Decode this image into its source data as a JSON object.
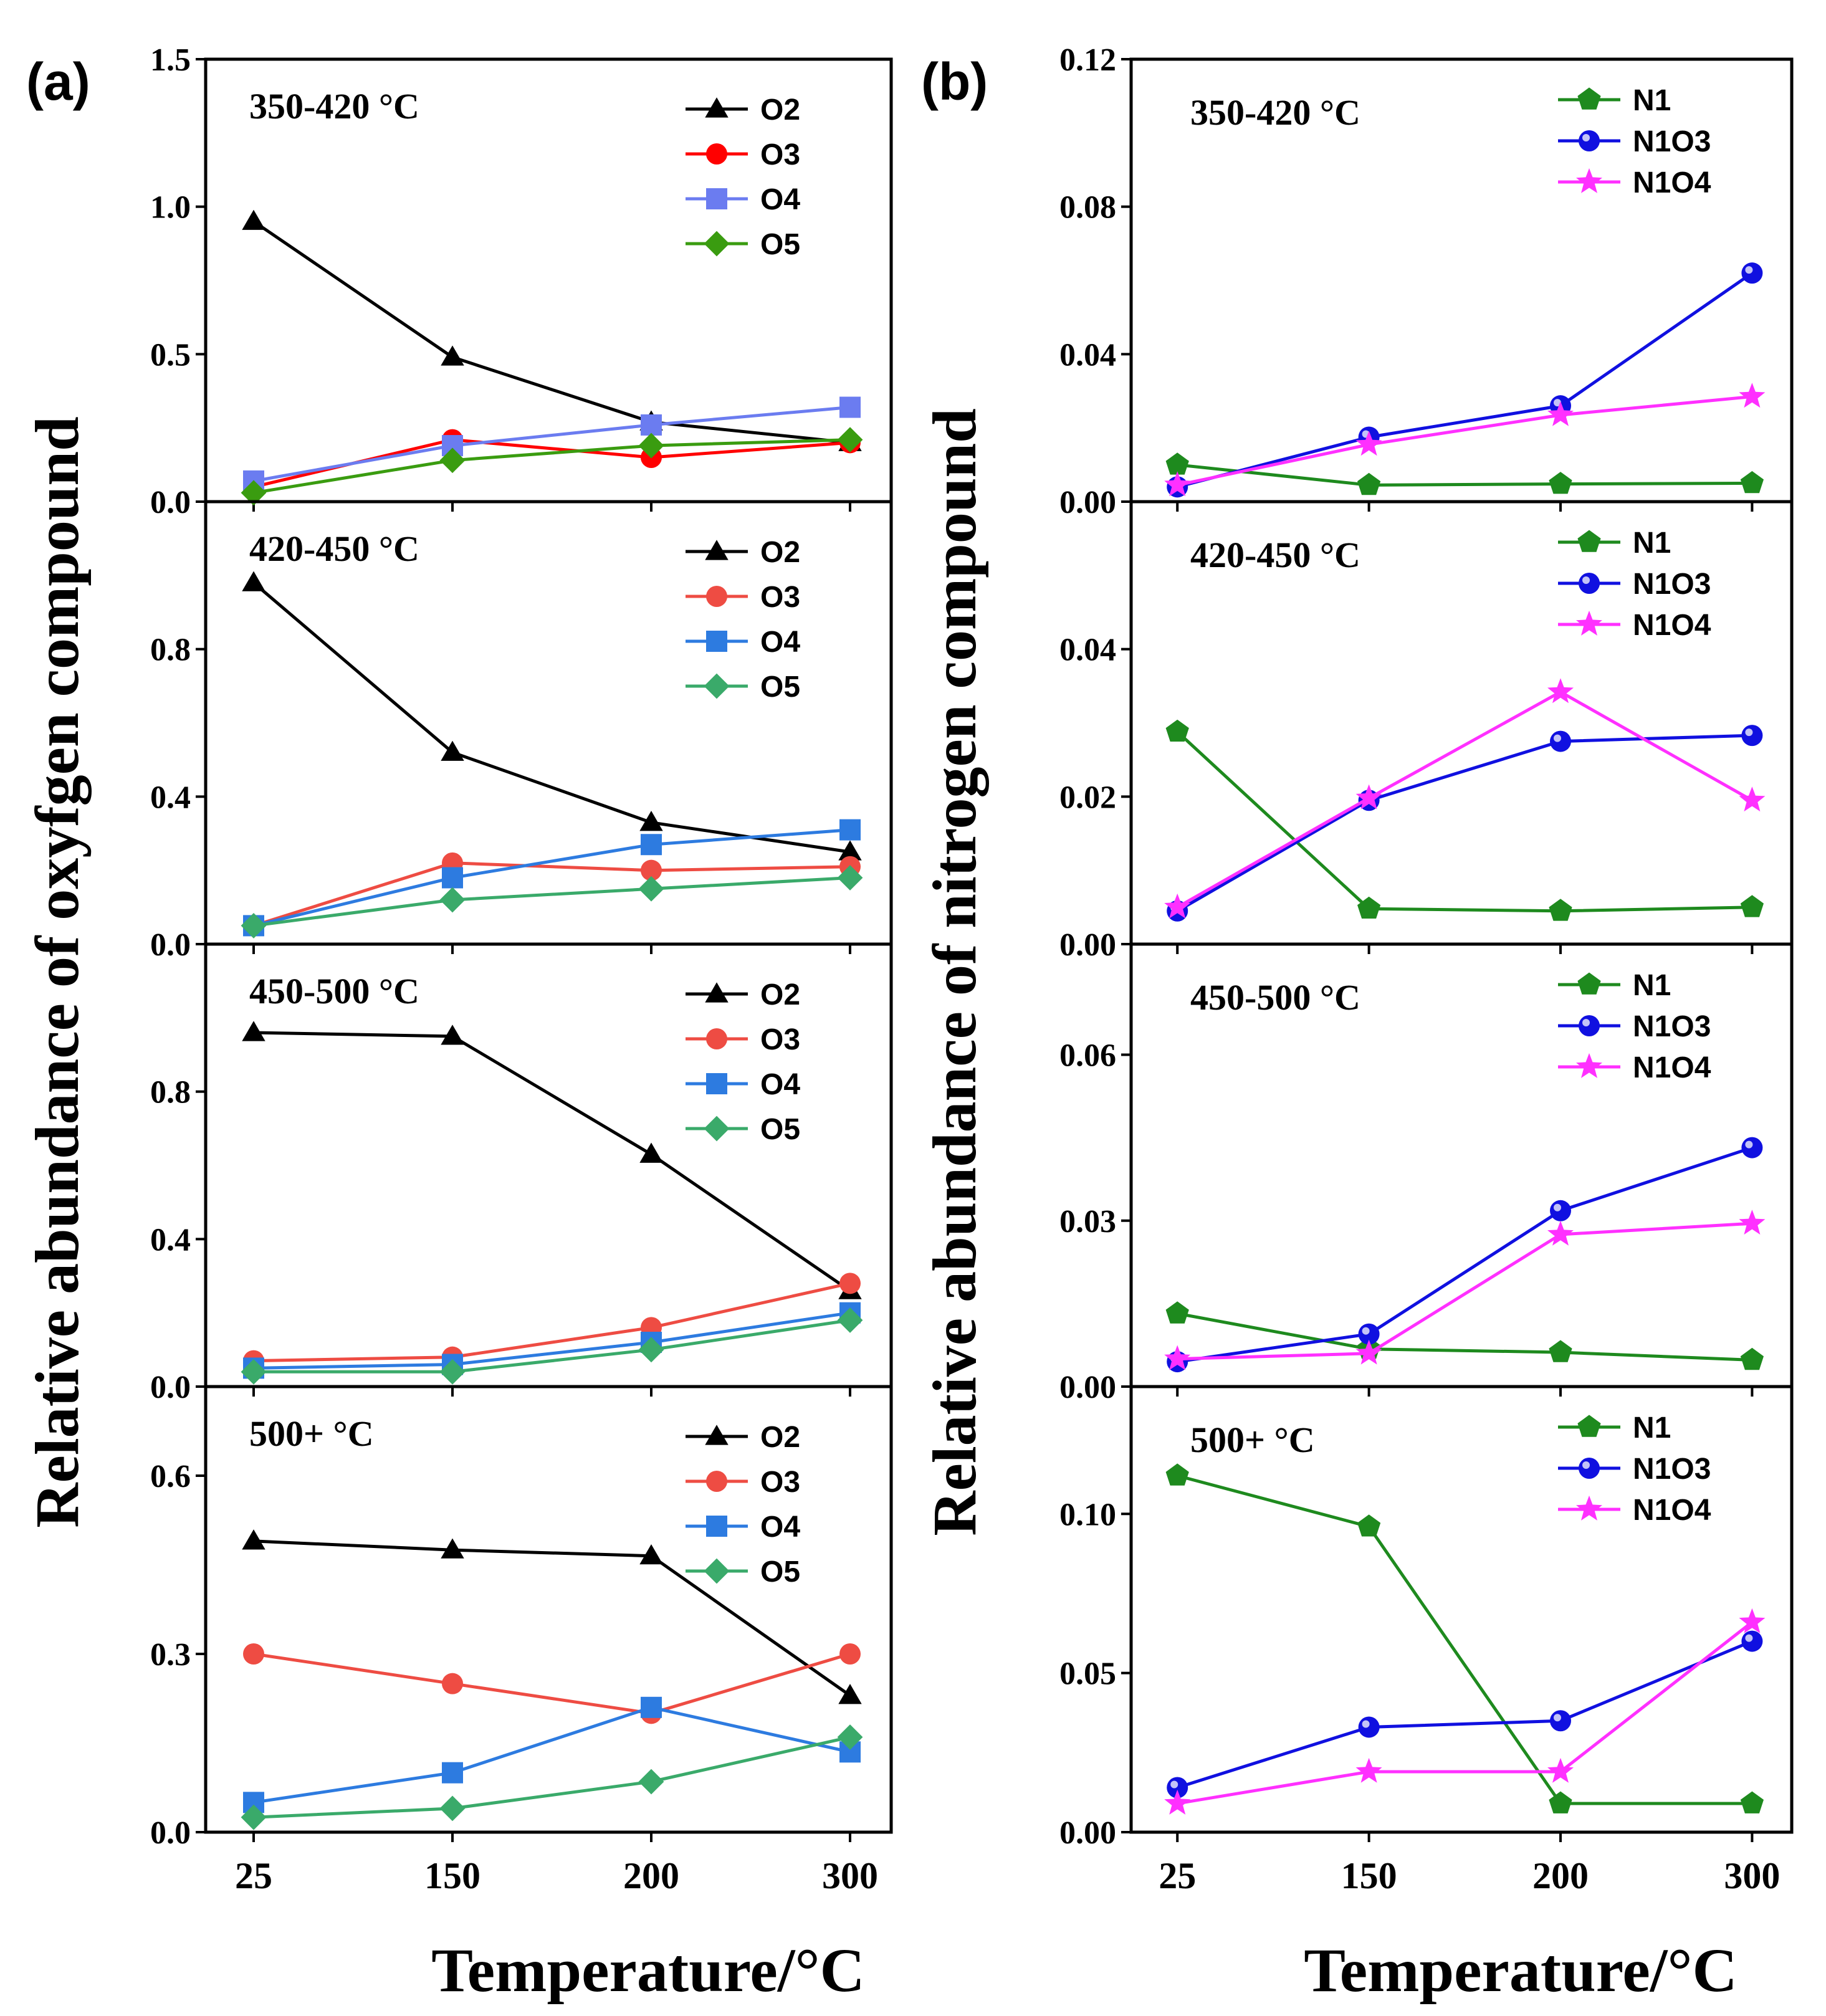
{
  "figure": {
    "label_a": "(a)",
    "label_b": "(b)",
    "xlabel_a": "Temperature/°C",
    "xlabel_b": "Temperature/°C",
    "ylabel_a": "Relative abundance of oxyfgen compound",
    "ylabel_b": "Relative abundance of nitrogen compound"
  },
  "colors": {
    "O2": "#000000",
    "O3_a1": "#ff0000",
    "O4_a1": "#6b7cf0",
    "O5_a1": "#3a9c10",
    "O3": "#ee4c43",
    "O4": "#2d7be0",
    "O5": "#3aaa6a",
    "N1": "#1e8a1e",
    "N1O3": "#1010e0",
    "N1O4": "#ff30ff"
  },
  "chart_data": [
    {
      "id": "a1",
      "type": "line",
      "title": "350-420 °C",
      "x": [
        "25",
        "150",
        "200",
        "300"
      ],
      "ylim": [
        0,
        1.5
      ],
      "yticks": [
        "0.0",
        "0.5",
        "1.0",
        "1.5"
      ],
      "series": [
        {
          "name": "O2",
          "marker": "triangle",
          "color_key": "O2",
          "values": [
            0.95,
            0.49,
            0.27,
            0.2
          ]
        },
        {
          "name": "O3",
          "marker": "circle",
          "color_key": "O3_a1",
          "values": [
            0.05,
            0.21,
            0.15,
            0.2
          ]
        },
        {
          "name": "O4",
          "marker": "square",
          "color_key": "O4_a1",
          "values": [
            0.07,
            0.19,
            0.26,
            0.32
          ]
        },
        {
          "name": "O5",
          "marker": "diamond",
          "color_key": "O5_a1",
          "values": [
            0.03,
            0.14,
            0.19,
            0.21
          ]
        }
      ]
    },
    {
      "id": "a2",
      "type": "line",
      "title": "420-450 °C",
      "x": [
        "25",
        "150",
        "200",
        "300"
      ],
      "ylim": [
        0,
        1.2
      ],
      "yticks": [
        "0.0",
        "0.4",
        "0.8"
      ],
      "series": [
        {
          "name": "O2",
          "marker": "triangle",
          "color_key": "O2",
          "values": [
            0.98,
            0.52,
            0.33,
            0.25
          ]
        },
        {
          "name": "O3",
          "marker": "circle",
          "color_key": "O3",
          "values": [
            0.05,
            0.22,
            0.2,
            0.21
          ]
        },
        {
          "name": "O4",
          "marker": "square",
          "color_key": "O4",
          "values": [
            0.05,
            0.18,
            0.27,
            0.31
          ]
        },
        {
          "name": "O5",
          "marker": "diamond",
          "color_key": "O5",
          "values": [
            0.05,
            0.12,
            0.15,
            0.18
          ]
        }
      ]
    },
    {
      "id": "a3",
      "type": "line",
      "title": "450-500 °C",
      "x": [
        "25",
        "150",
        "200",
        "300"
      ],
      "ylim": [
        0,
        1.2
      ],
      "yticks": [
        "0.0",
        "0.4",
        "0.8"
      ],
      "series": [
        {
          "name": "O2",
          "marker": "triangle",
          "color_key": "O2",
          "values": [
            0.96,
            0.95,
            0.63,
            0.26
          ]
        },
        {
          "name": "O3",
          "marker": "circle",
          "color_key": "O3",
          "values": [
            0.07,
            0.08,
            0.16,
            0.28
          ]
        },
        {
          "name": "O4",
          "marker": "square",
          "color_key": "O4",
          "values": [
            0.05,
            0.06,
            0.12,
            0.2
          ]
        },
        {
          "name": "O5",
          "marker": "diamond",
          "color_key": "O5",
          "values": [
            0.04,
            0.04,
            0.1,
            0.18
          ]
        }
      ]
    },
    {
      "id": "a4",
      "type": "line",
      "title": "500+ °C",
      "x": [
        "25",
        "150",
        "200",
        "300"
      ],
      "ylim": [
        0,
        0.75
      ],
      "yticks": [
        "0.0",
        "0.3",
        "0.6"
      ],
      "series": [
        {
          "name": "O2",
          "marker": "triangle",
          "color_key": "O2",
          "values": [
            0.49,
            0.475,
            0.465,
            0.23
          ]
        },
        {
          "name": "O3",
          "marker": "circle",
          "color_key": "O3",
          "values": [
            0.3,
            0.25,
            0.2,
            0.3
          ]
        },
        {
          "name": "O4",
          "marker": "square",
          "color_key": "O4",
          "values": [
            0.05,
            0.1,
            0.21,
            0.135
          ]
        },
        {
          "name": "O5",
          "marker": "diamond",
          "color_key": "O5",
          "values": [
            0.025,
            0.04,
            0.085,
            0.16
          ]
        }
      ]
    },
    {
      "id": "b1",
      "type": "line",
      "title": "350-420 °C",
      "x": [
        "25",
        "150",
        "200",
        "300"
      ],
      "ylim": [
        0,
        0.12
      ],
      "yticks": [
        "0.00",
        "0.04",
        "0.08",
        "0.12"
      ],
      "series": [
        {
          "name": "N1",
          "marker": "pentagon",
          "color_key": "N1",
          "values": [
            0.01,
            0.0045,
            0.0048,
            0.005
          ]
        },
        {
          "name": "N1O3",
          "marker": "sphere",
          "color_key": "N1O3",
          "values": [
            0.004,
            0.0175,
            0.026,
            0.062
          ]
        },
        {
          "name": "N1O4",
          "marker": "star",
          "color_key": "N1O4",
          "values": [
            0.0045,
            0.0155,
            0.0235,
            0.0285
          ]
        }
      ]
    },
    {
      "id": "b2",
      "type": "line",
      "title": "420-450 °C",
      "x": [
        "25",
        "150",
        "200",
        "300"
      ],
      "ylim": [
        0,
        0.06
      ],
      "yticks": [
        "0.00",
        "0.02",
        "0.04"
      ],
      "series": [
        {
          "name": "N1",
          "marker": "pentagon",
          "color_key": "N1",
          "values": [
            0.0288,
            0.0048,
            0.0045,
            0.005
          ]
        },
        {
          "name": "N1O3",
          "marker": "sphere",
          "color_key": "N1O3",
          "values": [
            0.0045,
            0.0195,
            0.0275,
            0.0283
          ]
        },
        {
          "name": "N1O4",
          "marker": "star",
          "color_key": "N1O4",
          "values": [
            0.005,
            0.0198,
            0.0342,
            0.0195
          ]
        }
      ]
    },
    {
      "id": "b3",
      "type": "line",
      "title": "450-500 °C",
      "x": [
        "25",
        "150",
        "200",
        "300"
      ],
      "ylim": [
        0,
        0.08
      ],
      "yticks": [
        "0.00",
        "0.03",
        "0.06"
      ],
      "series": [
        {
          "name": "N1",
          "marker": "pentagon",
          "color_key": "N1",
          "values": [
            0.0132,
            0.0068,
            0.0062,
            0.0048
          ]
        },
        {
          "name": "N1O3",
          "marker": "sphere",
          "color_key": "N1O3",
          "values": [
            0.0045,
            0.0095,
            0.0318,
            0.0432
          ]
        },
        {
          "name": "N1O4",
          "marker": "star",
          "color_key": "N1O4",
          "values": [
            0.005,
            0.006,
            0.0275,
            0.0295
          ]
        }
      ]
    },
    {
      "id": "b4",
      "type": "line",
      "title": "500+ °C",
      "x": [
        "25",
        "150",
        "200",
        "300"
      ],
      "ylim": [
        0,
        0.14
      ],
      "yticks": [
        "0.00",
        "0.05",
        "0.10"
      ],
      "series": [
        {
          "name": "N1",
          "marker": "pentagon",
          "color_key": "N1",
          "values": [
            0.112,
            0.096,
            0.009,
            0.009
          ]
        },
        {
          "name": "N1O3",
          "marker": "sphere",
          "color_key": "N1O3",
          "values": [
            0.014,
            0.033,
            0.035,
            0.06
          ]
        },
        {
          "name": "N1O4",
          "marker": "star",
          "color_key": "N1O4",
          "values": [
            0.009,
            0.019,
            0.019,
            0.066
          ]
        }
      ]
    }
  ]
}
